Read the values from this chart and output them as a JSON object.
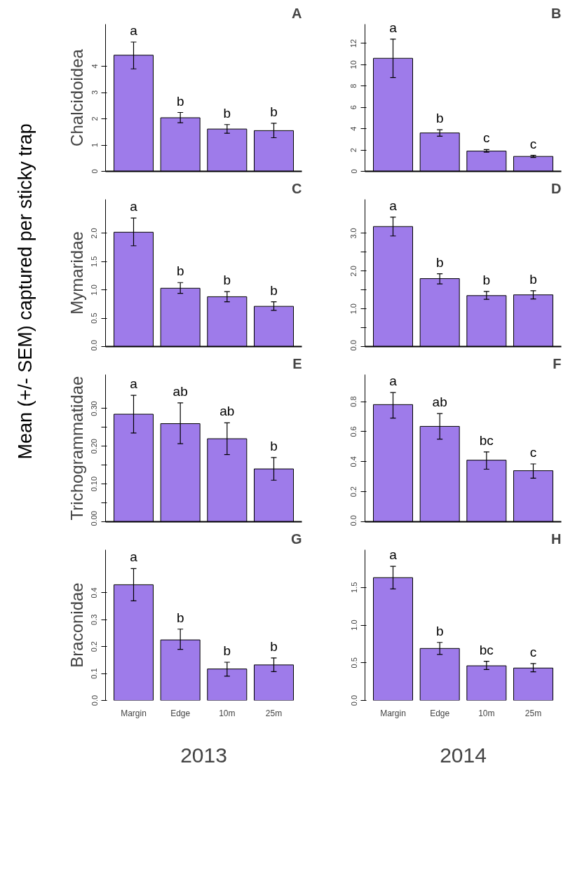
{
  "chart_data": [
    {
      "type": "bar",
      "title": "A",
      "ylabel": "Chalcidoidea",
      "annotations": [
        "Mean (+/- SEM) captured per sticky trap"
      ],
      "categories": [
        null,
        null,
        null,
        null
      ],
      "values": [
        4.42,
        2.04,
        1.61,
        1.55
      ],
      "errors": [
        [
          3.9,
          4.92
        ],
        [
          1.85,
          2.24
        ],
        [
          1.45,
          1.78
        ],
        [
          1.28,
          1.83
        ]
      ],
      "value_labels": [
        "a",
        "b",
        "b",
        "b"
      ],
      "color": "#9e7bea",
      "ylim": [
        0,
        5.6
      ],
      "yticks": [
        0,
        1,
        2,
        3,
        4
      ],
      "tick_labels": "y",
      "grid": false
    },
    {
      "type": "bar",
      "title": "B",
      "categories": [
        null,
        null,
        null,
        null
      ],
      "values": [
        10.6,
        3.6,
        1.9,
        1.4
      ],
      "errors": [
        [
          8.8,
          12.4
        ],
        [
          3.3,
          3.9
        ],
        [
          1.8,
          2.05
        ],
        [
          1.3,
          1.5
        ]
      ],
      "value_labels": [
        "a",
        "b",
        "c",
        "c"
      ],
      "color": "#9e7bea",
      "ylim": [
        0,
        13.8
      ],
      "yticks": [
        0,
        2,
        4,
        6,
        8,
        10,
        12
      ],
      "tick_labels": "y",
      "grid": false
    },
    {
      "type": "bar",
      "title": "C",
      "ylabel": "Mymaridae",
      "categories": [
        null,
        null,
        null,
        null
      ],
      "values": [
        2.02,
        1.03,
        0.88,
        0.71
      ],
      "errors": [
        [
          1.78,
          2.27
        ],
        [
          0.94,
          1.13
        ],
        [
          0.79,
          0.97
        ],
        [
          0.64,
          0.79
        ]
      ],
      "value_labels": [
        "a",
        "b",
        "b",
        "b"
      ],
      "color": "#9e7bea",
      "ylim": [
        0,
        2.6
      ],
      "yticks": [
        {
          "value": 0,
          "label": "0.0"
        },
        {
          "value": 0.5,
          "label": "0.5"
        },
        {
          "value": 1,
          "label": "1.0"
        },
        {
          "value": 1.5,
          "label": "1.5"
        },
        {
          "value": 2,
          "label": "2.0"
        }
      ],
      "tick_labels": "y",
      "grid": false
    },
    {
      "type": "bar",
      "title": "D",
      "categories": [
        null,
        null,
        null,
        null
      ],
      "values": [
        3.18,
        1.8,
        1.35,
        1.37
      ],
      "errors": [
        [
          2.93,
          3.43
        ],
        [
          1.66,
          1.93
        ],
        [
          1.25,
          1.46
        ],
        [
          1.26,
          1.48
        ]
      ],
      "value_labels": [
        "a",
        "b",
        "b",
        "b"
      ],
      "color": "#9e7bea",
      "ylim": [
        0,
        3.9
      ],
      "yticks": [
        {
          "value": 0,
          "label": "0.0"
        },
        {
          "value": 0.5,
          "label": null
        },
        {
          "value": 1,
          "label": "1.0"
        },
        {
          "value": 1.5,
          "label": null
        },
        {
          "value": 2,
          "label": "2.0"
        },
        {
          "value": 2.5,
          "label": null
        },
        {
          "value": 3,
          "label": "3.0"
        }
      ],
      "tick_labels": "y",
      "grid": false
    },
    {
      "type": "bar",
      "title": "E",
      "ylabel": "Trichogrammatidae",
      "categories": [
        null,
        null,
        null,
        null
      ],
      "values": [
        0.285,
        0.26,
        0.22,
        0.14
      ],
      "errors": [
        [
          0.235,
          0.335
        ],
        [
          0.207,
          0.315
        ],
        [
          0.178,
          0.262
        ],
        [
          0.11,
          0.17
        ]
      ],
      "value_labels": [
        "a",
        "ab",
        "ab",
        "b"
      ],
      "color": "#9e7bea",
      "ylim": [
        0,
        0.39
      ],
      "yticks": [
        {
          "value": 0,
          "label": "0.00"
        },
        {
          "value": 0.05,
          "label": null
        },
        {
          "value": 0.1,
          "label": "0.10"
        },
        {
          "value": 0.15,
          "label": null
        },
        {
          "value": 0.2,
          "label": "0.20"
        },
        {
          "value": 0.25,
          "label": null
        },
        {
          "value": 0.3,
          "label": "0.30"
        }
      ],
      "tick_labels": "y",
      "grid": false
    },
    {
      "type": "bar",
      "title": "F",
      "categories": [
        null,
        null,
        null,
        null
      ],
      "values": [
        0.78,
        0.635,
        0.41,
        0.34
      ],
      "errors": [
        [
          0.69,
          0.86
        ],
        [
          0.55,
          0.72
        ],
        [
          0.35,
          0.465
        ],
        [
          0.29,
          0.385
        ]
      ],
      "value_labels": [
        "a",
        "ab",
        "bc",
        "c"
      ],
      "color": "#9e7bea",
      "ylim": [
        0,
        0.98
      ],
      "yticks": [
        {
          "value": 0,
          "label": "0.0"
        },
        {
          "value": 0.2,
          "label": "0.2"
        },
        {
          "value": 0.4,
          "label": "0.4"
        },
        {
          "value": 0.6,
          "label": "0.6"
        },
        {
          "value": 0.8,
          "label": "0.8"
        }
      ],
      "grid": false,
      "tick_labels": "y"
    },
    {
      "type": "bar",
      "title": "G",
      "ylabel": "Braconidae",
      "xlabel": "2013",
      "categories": [
        "Margin",
        "Edge",
        "10m",
        "25m"
      ],
      "values": [
        0.43,
        0.225,
        0.117,
        0.132
      ],
      "errors": [
        [
          0.37,
          0.49
        ],
        [
          0.19,
          0.265
        ],
        [
          0.09,
          0.142
        ],
        [
          0.107,
          0.158
        ]
      ],
      "value_labels": [
        "a",
        "b",
        "b",
        "b"
      ],
      "color": "#9e7bea",
      "ylim": [
        0,
        0.56
      ],
      "yticks": [
        {
          "value": 0,
          "label": "0.0"
        },
        {
          "value": 0.1,
          "label": "0.1"
        },
        {
          "value": 0.2,
          "label": "0.2"
        },
        {
          "value": 0.3,
          "label": "0.3"
        },
        {
          "value": 0.4,
          "label": "0.4"
        }
      ],
      "grid": false
    },
    {
      "type": "bar",
      "title": "H",
      "xlabel": "2014",
      "categories": [
        "Margin",
        "Edge",
        "10m",
        "25m"
      ],
      "values": [
        1.63,
        0.69,
        0.46,
        0.43
      ],
      "errors": [
        [
          1.48,
          1.78
        ],
        [
          0.61,
          0.77
        ],
        [
          0.41,
          0.52
        ],
        [
          0.38,
          0.49
        ]
      ],
      "value_labels": [
        "a",
        "b",
        "bc",
        "c"
      ],
      "color": "#9e7bea",
      "ylim": [
        0,
        2.0
      ],
      "yticks": [
        {
          "value": 0,
          "label": "0.0"
        },
        {
          "value": 0.5,
          "label": "0.5"
        },
        {
          "value": 1,
          "label": "1.0"
        },
        {
          "value": 1.5,
          "label": "1.5"
        }
      ],
      "grid": false
    }
  ]
}
